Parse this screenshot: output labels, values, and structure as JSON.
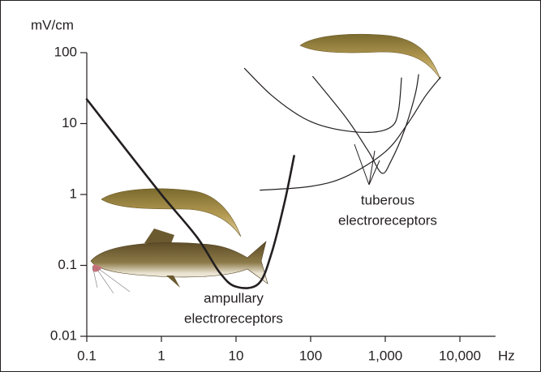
{
  "chart_data": {
    "type": "line",
    "y_label": "mV/cm",
    "x_label": "Hz",
    "x_log": true,
    "y_log": true,
    "xlim": [
      0.1,
      30000
    ],
    "ylim": [
      0.01,
      100
    ],
    "xticks": [
      0.1,
      1,
      10,
      100,
      {
        "value": 1000,
        "label": "1,000"
      },
      {
        "value": 10000,
        "label": "10,000"
      }
    ],
    "yticks": [
      0.01,
      0.1,
      1,
      10,
      100
    ],
    "series": [
      {
        "color": "#231f20",
        "linewidth": 2.6,
        "x": [
          0.1,
          0.3,
          1,
          3,
          6,
          10,
          20,
          30,
          45,
          60
        ],
        "values": [
          22,
          5,
          1,
          0.25,
          0.08,
          0.05,
          0.055,
          0.15,
          0.8,
          3.5
        ]
      },
      {
        "color": "#231f20",
        "linewidth": 1.2,
        "x": [
          13,
          30,
          80,
          200,
          600,
          1200,
          1500,
          1650
        ],
        "values": [
          60,
          25,
          12,
          8.5,
          7.5,
          9,
          15,
          44
        ]
      },
      {
        "color": "#231f20",
        "linewidth": 1.2,
        "x": [
          107,
          300,
          600,
          900,
          1200,
          1800,
          2500,
          2800
        ],
        "values": [
          46,
          12,
          4,
          2,
          3,
          8,
          25,
          49
        ]
      },
      {
        "color": "#231f20",
        "linewidth": 1.2,
        "x": [
          21,
          100,
          300,
          1000,
          2000,
          3500,
          5500
        ],
        "values": [
          1.15,
          1.3,
          1.8,
          4,
          10,
          25,
          45
        ]
      }
    ],
    "annotations": [
      {
        "lines": [
          "ampullary",
          "electroreceptors"
        ]
      },
      {
        "lines": [
          "tuberous",
          "electroreceptors"
        ]
      }
    ]
  }
}
